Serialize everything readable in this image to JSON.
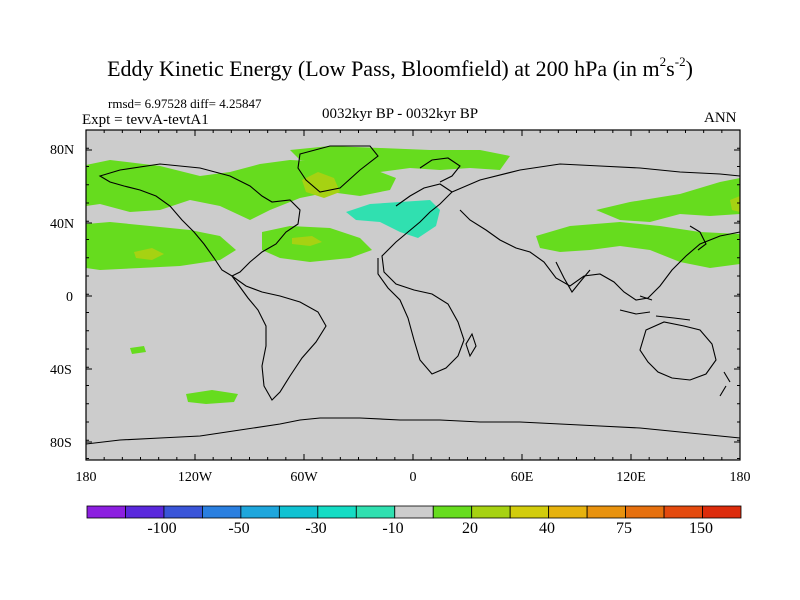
{
  "title_main": "Eddy Kinetic Energy (Low Pass, Bloomfield) at 200 hPa (in m",
  "title_sup1": "2",
  "title_mid": "s",
  "title_sup2": "-2",
  "title_end": ")",
  "stats": "rmsd= 6.97528 diff= 4.25847",
  "expt_label": "Expt = tevvA-tevtA1",
  "center_label": "0032kyr BP - 0032kyr BP",
  "season_label": "ANN",
  "y_ticks": [
    "80N",
    "40N",
    "0",
    "40S",
    "80S"
  ],
  "x_ticks": [
    "180",
    "120W",
    "60W",
    "0",
    "60E",
    "120E",
    "180"
  ],
  "colorbar": {
    "colors": [
      "#8c1fe0",
      "#5a28dc",
      "#3a55d8",
      "#2a7fe0",
      "#1ea6dc",
      "#10c2d2",
      "#14dcc4",
      "#30e0b0",
      "#cccccc",
      "#66dc1e",
      "#a6d212",
      "#d2cc0c",
      "#e6b20e",
      "#e8920e",
      "#e6700e",
      "#e44a0e",
      "#dc2c0c"
    ],
    "labels": [
      "-100",
      "-50",
      "-30",
      "-10",
      "20",
      "40",
      "75",
      "150"
    ]
  },
  "colors": {
    "land_bg": "#cccccc",
    "positive_light": "#66dc1e",
    "positive_mid": "#a6d212",
    "negative_light": "#30e0b0"
  }
}
